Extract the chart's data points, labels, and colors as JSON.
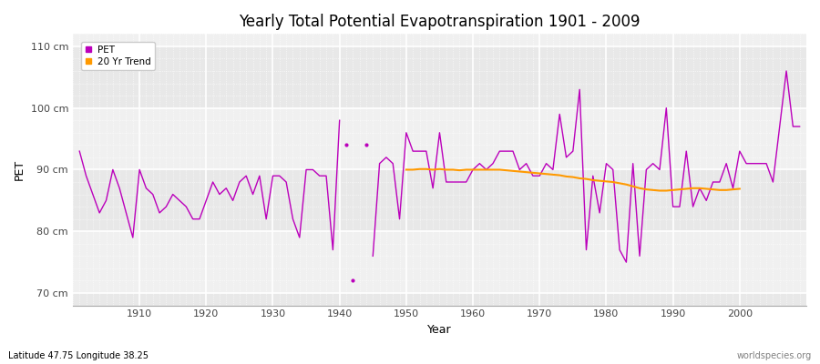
{
  "title": "Yearly Total Potential Evapotranspiration 1901 - 2009",
  "xlabel": "Year",
  "ylabel": "PET",
  "subtitle": "Latitude 47.75 Longitude 38.25",
  "watermark": "worldspecies.org",
  "ylim": [
    68,
    112
  ],
  "yticks": [
    70,
    80,
    90,
    100,
    110
  ],
  "ytick_labels": [
    "70 cm",
    "80 cm",
    "90 cm",
    "100 cm",
    "110 cm"
  ],
  "pet_color": "#bb00bb",
  "trend_color": "#ff9900",
  "fig_bg_color": "#ffffff",
  "plot_bg_color": "#f0f0f0",
  "band_color": "#e8e8e8",
  "years_seg1": [
    1901,
    1902,
    1903,
    1904,
    1905,
    1906,
    1907,
    1908,
    1909,
    1910,
    1911,
    1912,
    1913,
    1914,
    1915,
    1916,
    1917,
    1918,
    1919,
    1920,
    1921,
    1922,
    1923,
    1924,
    1925,
    1926,
    1927,
    1928,
    1929,
    1930,
    1931,
    1932,
    1933,
    1934,
    1935,
    1936,
    1937,
    1938,
    1939,
    1940
  ],
  "pet_seg1": [
    93,
    89,
    86,
    83,
    85,
    90,
    87,
    83,
    79,
    90,
    87,
    86,
    83,
    84,
    86,
    85,
    84,
    82,
    82,
    85,
    88,
    86,
    87,
    85,
    88,
    89,
    86,
    89,
    82,
    89,
    89,
    88,
    82,
    79,
    90,
    90,
    89,
    89,
    77,
    98
  ],
  "years_dot1": [
    1941
  ],
  "pet_dot1": [
    94
  ],
  "years_dot2": [
    1944
  ],
  "pet_dot2": [
    94
  ],
  "years_dot3": [
    1942
  ],
  "pet_dot3": [
    72
  ],
  "years_seg2": [
    1945,
    1946,
    1947,
    1948,
    1949,
    1950,
    1951,
    1952,
    1953,
    1954,
    1955,
    1956,
    1957,
    1958,
    1959,
    1960,
    1961,
    1962,
    1963,
    1964,
    1965,
    1966,
    1967,
    1968,
    1969,
    1970,
    1971,
    1972,
    1973,
    1974,
    1975,
    1976,
    1977,
    1978,
    1979,
    1980,
    1981,
    1982,
    1983,
    1984,
    1985,
    1986,
    1987,
    1988,
    1989,
    1990,
    1991,
    1992,
    1993,
    1994,
    1995,
    1996,
    1997,
    1998,
    1999,
    2000,
    2001,
    2002,
    2003,
    2004,
    2005,
    2006,
    2007,
    2008,
    2009
  ],
  "pet_seg2": [
    76,
    91,
    92,
    91,
    82,
    96,
    93,
    93,
    93,
    87,
    96,
    88,
    88,
    88,
    88,
    90,
    91,
    90,
    91,
    93,
    93,
    93,
    90,
    91,
    89,
    89,
    91,
    90,
    99,
    92,
    93,
    103,
    77,
    89,
    83,
    91,
    90,
    77,
    75,
    91,
    76,
    90,
    91,
    90,
    100,
    84,
    84,
    93,
    84,
    87,
    85,
    88,
    88,
    91,
    87,
    93,
    91,
    91,
    91,
    91,
    88,
    97,
    106,
    97,
    97
  ],
  "trend_years": [
    1950,
    1951,
    1952,
    1953,
    1954,
    1955,
    1956,
    1957,
    1958,
    1959,
    1960,
    1961,
    1962,
    1963,
    1964,
    1965,
    1966,
    1967,
    1968,
    1969,
    1970,
    1971,
    1972,
    1973,
    1974,
    1975,
    1976,
    1977,
    1978,
    1979,
    1980,
    1981,
    1982,
    1983,
    1984,
    1985,
    1986,
    1987,
    1988,
    1989,
    1990,
    1991,
    1992,
    1993,
    1994,
    1995,
    1996,
    1997,
    1998,
    1999,
    2000
  ],
  "trend_values": [
    90.0,
    90.0,
    90.1,
    90.1,
    90.0,
    90.1,
    90.0,
    90.0,
    89.9,
    90.0,
    90.0,
    90.0,
    90.0,
    90.0,
    90.0,
    89.9,
    89.8,
    89.7,
    89.6,
    89.5,
    89.4,
    89.3,
    89.2,
    89.1,
    88.9,
    88.8,
    88.6,
    88.5,
    88.3,
    88.2,
    88.1,
    88.0,
    87.8,
    87.6,
    87.3,
    87.0,
    86.8,
    86.7,
    86.6,
    86.6,
    86.7,
    86.8,
    86.9,
    87.0,
    87.0,
    86.9,
    86.8,
    86.7,
    86.7,
    86.8,
    86.9
  ]
}
